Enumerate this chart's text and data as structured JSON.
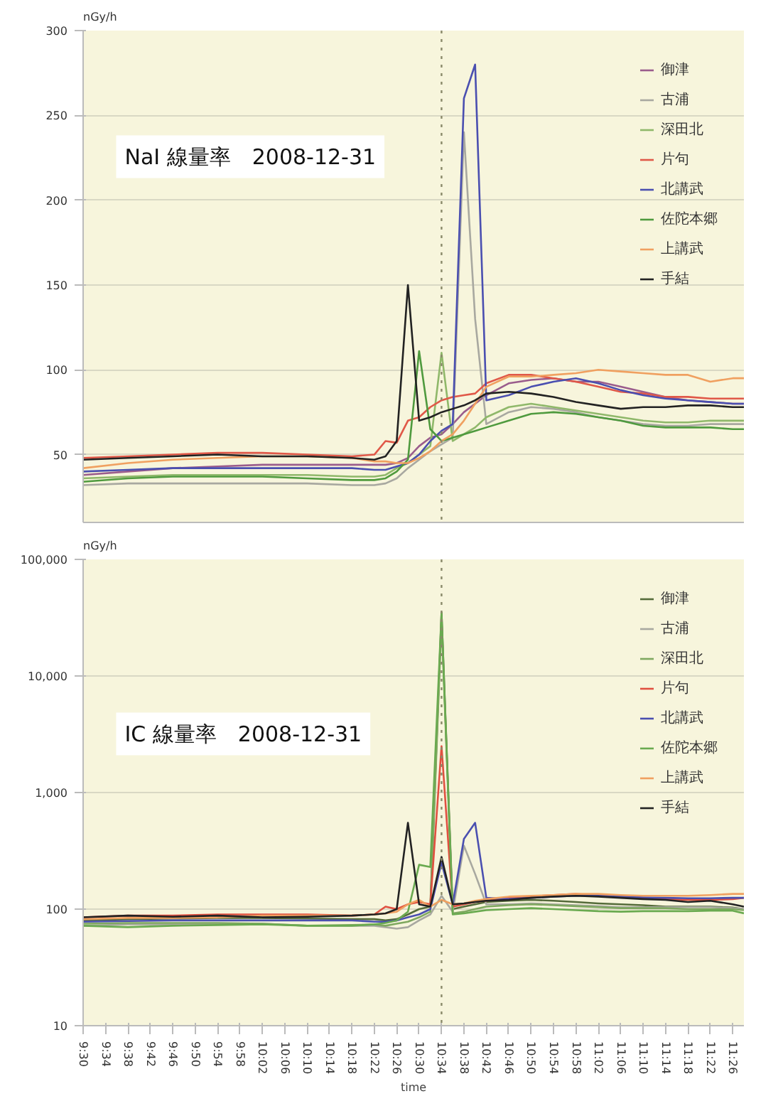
{
  "chart_data": [
    {
      "type": "line",
      "title": "NaI 線量率　2008-12-31",
      "ylabel": "nGy/h",
      "xlim": [
        9.5,
        11.4667
      ],
      "ylim": [
        10,
        300
      ],
      "yticks": [
        50,
        100,
        150,
        200,
        250,
        300
      ],
      "grid": "y",
      "legend": "top right",
      "tick_labels": "y",
      "x": [
        9.5,
        9.6333,
        9.7667,
        9.9,
        10.0333,
        10.1667,
        10.3,
        10.3667,
        10.4,
        10.4333,
        10.4667,
        10.5,
        10.5333,
        10.5667,
        10.6,
        10.6333,
        10.6667,
        10.7,
        10.7667,
        10.8333,
        10.9,
        10.9667,
        11.0333,
        11.1,
        11.1667,
        11.2333,
        11.3,
        11.3667,
        11.4333,
        11.4667
      ],
      "ref_lines": [
        {
          "axis": "x",
          "value": 10.5667,
          "color": "#8a8a6a",
          "line_style": "dotted"
        }
      ],
      "series": [
        {
          "name": "御津",
          "color": "#9a5c8c",
          "values": [
            38,
            40,
            42,
            43,
            44,
            44,
            44,
            44,
            44,
            45,
            48,
            55,
            60,
            62,
            68,
            75,
            80,
            85,
            92,
            94,
            95,
            93,
            93,
            90,
            87,
            84,
            82,
            81,
            80,
            80
          ]
        },
        {
          "name": "古浦",
          "color": "#a8a8a0",
          "values": [
            32,
            33,
            33,
            33,
            33,
            33,
            32,
            32,
            33,
            36,
            42,
            47,
            52,
            56,
            60,
            240,
            130,
            68,
            75,
            78,
            77,
            75,
            72,
            70,
            68,
            67,
            67,
            68,
            68,
            68
          ]
        },
        {
          "name": "深田北",
          "color": "#8fb86a",
          "values": [
            36,
            37,
            38,
            38,
            38,
            38,
            37,
            37,
            38,
            42,
            45,
            50,
            55,
            110,
            58,
            62,
            66,
            72,
            78,
            80,
            78,
            76,
            74,
            72,
            70,
            69,
            69,
            70,
            70,
            70
          ]
        },
        {
          "name": "片句",
          "color": "#e05848",
          "values": [
            48,
            49,
            50,
            51,
            51,
            50,
            49,
            50,
            58,
            57,
            70,
            72,
            78,
            82,
            84,
            85,
            86,
            92,
            97,
            97,
            95,
            93,
            90,
            87,
            86,
            84,
            84,
            83,
            83,
            83
          ]
        },
        {
          "name": "北講武",
          "color": "#4a4fb0",
          "values": [
            40,
            41,
            42,
            42,
            42,
            42,
            42,
            41,
            41,
            43,
            45,
            50,
            58,
            64,
            68,
            260,
            280,
            82,
            85,
            90,
            93,
            95,
            92,
            88,
            85,
            83,
            82,
            81,
            80,
            80
          ]
        },
        {
          "name": "佐陀本郷",
          "color": "#4f9a3e",
          "values": [
            34,
            36,
            37,
            37,
            37,
            36,
            35,
            35,
            36,
            40,
            47,
            111,
            65,
            58,
            60,
            62,
            64,
            66,
            70,
            74,
            75,
            74,
            72,
            70,
            67,
            66,
            66,
            66,
            65,
            65
          ]
        },
        {
          "name": "上講武",
          "color": "#f0a060",
          "values": [
            42,
            45,
            47,
            48,
            49,
            49,
            48,
            46,
            46,
            45,
            45,
            48,
            52,
            58,
            62,
            70,
            80,
            90,
            96,
            96,
            97,
            98,
            100,
            99,
            98,
            97,
            97,
            93,
            95,
            95
          ]
        },
        {
          "name": "手結",
          "color": "#222222",
          "values": [
            47,
            48,
            49,
            50,
            49,
            49,
            48,
            47,
            49,
            58,
            150,
            70,
            72,
            75,
            77,
            79,
            82,
            86,
            87,
            86,
            84,
            81,
            79,
            77,
            78,
            78,
            79,
            79,
            78,
            78
          ]
        }
      ]
    },
    {
      "type": "line",
      "title": "IC 線量率　2008-12-31",
      "ylabel": "nGy/h",
      "xlabel": "time",
      "log": "y",
      "xlim": [
        9.5,
        11.4667
      ],
      "ylim": [
        10,
        100000
      ],
      "yticks": [
        {
          "value": 10,
          "label": "10"
        },
        {
          "value": 100,
          "label": "100"
        },
        {
          "value": 1000,
          "label": "1,000"
        },
        {
          "value": 10000,
          "label": "10,000"
        },
        {
          "value": 100000,
          "label": "100,000"
        }
      ],
      "grid": "y",
      "legend": "top right",
      "xticks": [
        {
          "value": 9.5,
          "label": "9:30"
        },
        {
          "value": 9.5667,
          "label": "9:34"
        },
        {
          "value": 9.6333,
          "label": "9:38"
        },
        {
          "value": 9.7,
          "label": "9:42"
        },
        {
          "value": 9.7667,
          "label": "9:46"
        },
        {
          "value": 9.8333,
          "label": "9:50"
        },
        {
          "value": 9.9,
          "label": "9:54"
        },
        {
          "value": 9.9667,
          "label": "9:58"
        },
        {
          "value": 10.0333,
          "label": "10:02"
        },
        {
          "value": 10.1,
          "label": "10:06"
        },
        {
          "value": 10.1667,
          "label": "10:10"
        },
        {
          "value": 10.2333,
          "label": "10:14"
        },
        {
          "value": 10.3,
          "label": "10:18"
        },
        {
          "value": 10.3667,
          "label": "10:22"
        },
        {
          "value": 10.4333,
          "label": "10:26"
        },
        {
          "value": 10.5,
          "label": "10:30"
        },
        {
          "value": 10.5667,
          "label": "10:34"
        },
        {
          "value": 10.6333,
          "label": "10:38"
        },
        {
          "value": 10.7,
          "label": "10:42"
        },
        {
          "value": 10.7667,
          "label": "10:46"
        },
        {
          "value": 10.8333,
          "label": "10:50"
        },
        {
          "value": 10.9,
          "label": "10:54"
        },
        {
          "value": 10.9667,
          "label": "10:58"
        },
        {
          "value": 11.0333,
          "label": "11:02"
        },
        {
          "value": 11.1,
          "label": "11:06"
        },
        {
          "value": 11.1667,
          "label": "11:10"
        },
        {
          "value": 11.2333,
          "label": "11:14"
        },
        {
          "value": 11.3,
          "label": "11:18"
        },
        {
          "value": 11.3667,
          "label": "11:22"
        },
        {
          "value": 11.4333,
          "label": "11:26"
        }
      ],
      "x": [
        9.5,
        9.6333,
        9.7667,
        9.9,
        10.0333,
        10.1667,
        10.3,
        10.3667,
        10.4,
        10.4333,
        10.4667,
        10.5,
        10.5333,
        10.5667,
        10.6,
        10.6333,
        10.6667,
        10.7,
        10.7667,
        10.8333,
        10.9,
        10.9667,
        11.0333,
        11.1,
        11.1667,
        11.2333,
        11.3,
        11.3667,
        11.4333,
        11.4667
      ],
      "ref_lines": [
        {
          "axis": "x",
          "value": 10.5667,
          "color": "#8a8a6a",
          "line_style": "dotted"
        }
      ],
      "series": [
        {
          "name": "御津",
          "color": "#556b3a",
          "values": [
            80,
            82,
            83,
            84,
            84,
            83,
            82,
            82,
            80,
            82,
            90,
            100,
            105,
            35000,
            100,
            105,
            110,
            115,
            118,
            120,
            118,
            115,
            112,
            110,
            108,
            105,
            105,
            105,
            103,
            100
          ]
        },
        {
          "name": "古浦",
          "color": "#a8a8a0",
          "values": [
            72,
            74,
            74,
            74,
            75,
            72,
            72,
            72,
            70,
            68,
            70,
            80,
            90,
            130,
            95,
            350,
            200,
            110,
            110,
            112,
            110,
            108,
            106,
            104,
            104,
            104,
            104,
            104,
            102,
            100
          ]
        },
        {
          "name": "深田北",
          "color": "#7fa860",
          "values": [
            75,
            76,
            76,
            76,
            75,
            72,
            73,
            74,
            72,
            75,
            78,
            85,
            95,
            30000,
            92,
            95,
            100,
            105,
            108,
            110,
            108,
            106,
            104,
            102,
            102,
            102,
            100,
            100,
            100,
            98
          ]
        },
        {
          "name": "片句",
          "color": "#e05040",
          "values": [
            85,
            88,
            88,
            90,
            90,
            90,
            88,
            90,
            105,
            100,
            110,
            115,
            110,
            2500,
            105,
            110,
            115,
            118,
            125,
            128,
            132,
            135,
            130,
            128,
            125,
            122,
            120,
            120,
            122,
            125
          ]
        },
        {
          "name": "北講武",
          "color": "#4a4fb0",
          "values": [
            78,
            79,
            80,
            80,
            80,
            80,
            80,
            78,
            78,
            80,
            85,
            90,
            100,
            250,
            110,
            400,
            550,
            125,
            122,
            125,
            128,
            130,
            130,
            128,
            126,
            125,
            124,
            124,
            125,
            125
          ]
        },
        {
          "name": "佐陀本郷",
          "color": "#6aaa50",
          "values": [
            72,
            70,
            72,
            73,
            74,
            72,
            72,
            74,
            76,
            80,
            95,
            240,
            230,
            35000,
            90,
            92,
            95,
            98,
            100,
            102,
            100,
            98,
            96,
            95,
            96,
            96,
            96,
            97,
            97,
            92
          ]
        },
        {
          "name": "上講武",
          "color": "#f0a060",
          "values": [
            82,
            84,
            84,
            85,
            88,
            88,
            88,
            90,
            92,
            95,
            110,
            120,
            105,
            120,
            110,
            112,
            118,
            122,
            128,
            130,
            132,
            135,
            135,
            132,
            130,
            130,
            130,
            132,
            135,
            135
          ]
        },
        {
          "name": "手結",
          "color": "#222222",
          "values": [
            85,
            88,
            86,
            88,
            85,
            86,
            88,
            90,
            92,
            100,
            550,
            110,
            105,
            280,
            110,
            112,
            115,
            118,
            120,
            125,
            128,
            130,
            128,
            125,
            122,
            120,
            115,
            118,
            110,
            105
          ]
        }
      ]
    }
  ]
}
